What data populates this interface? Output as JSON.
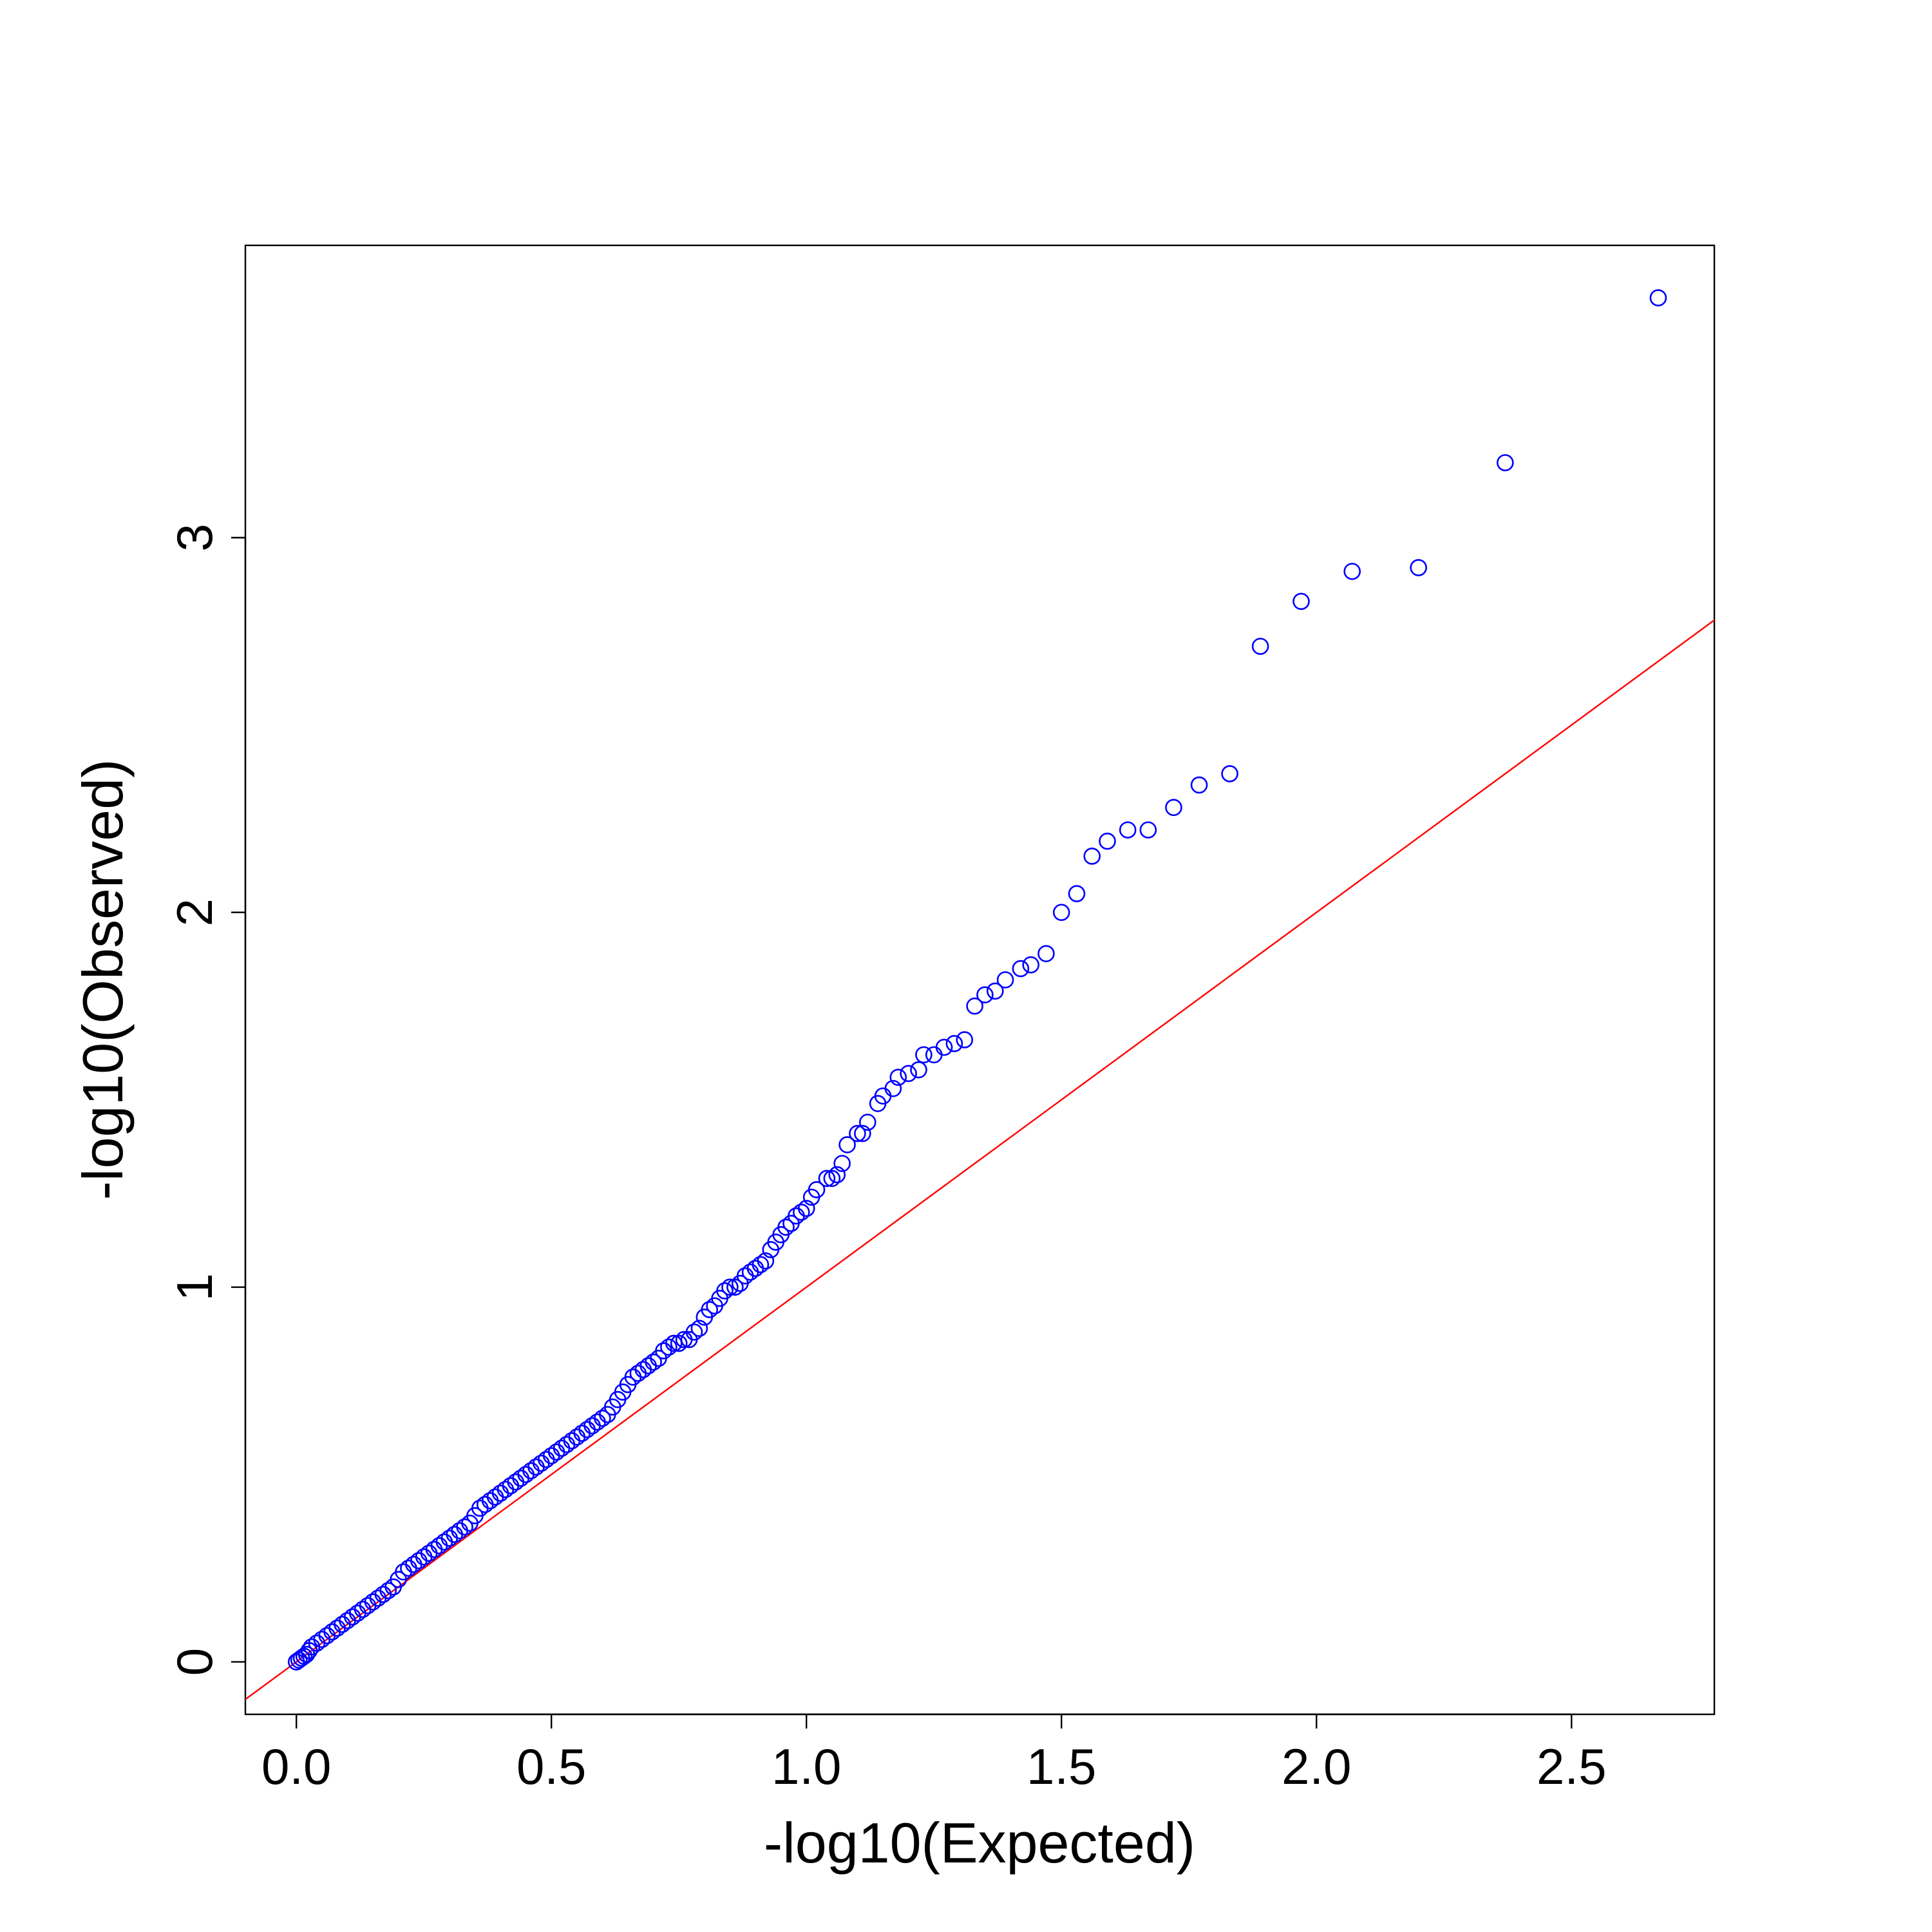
{
  "chart_data": {
    "type": "scatter",
    "title": "",
    "xlabel": "-log10(Expected)",
    "ylabel": "-log10(Observed)",
    "xlim": [
      -0.1,
      2.78
    ],
    "ylim": [
      -0.14,
      3.78
    ],
    "x_ticks": [
      0.0,
      0.5,
      1.0,
      1.5,
      2.0,
      2.5
    ],
    "x_tick_labels": [
      "0.0",
      "0.5",
      "1.0",
      "1.5",
      "2.0",
      "2.5"
    ],
    "y_ticks": [
      0,
      1,
      2,
      3
    ],
    "y_tick_labels": [
      "0",
      "1",
      "2",
      "3"
    ],
    "grid": false,
    "legend": "none",
    "colors": {
      "points": "#0000ff",
      "reference_line": "#ff0000",
      "axes": "#000000"
    },
    "reference_line": {
      "type": "y=x",
      "slope": 1,
      "intercept": 0
    },
    "series": [
      {
        "marker": "open-circle",
        "points": [
          [
            2.67,
            3.64
          ],
          [
            2.37,
            3.2
          ],
          [
            2.2,
            2.92
          ],
          [
            2.07,
            2.91
          ],
          [
            1.97,
            2.83
          ],
          [
            1.89,
            2.71
          ],
          [
            1.83,
            2.37
          ],
          [
            1.77,
            2.34
          ],
          [
            1.72,
            2.28
          ],
          [
            1.67,
            2.22
          ],
          [
            1.63,
            2.22
          ],
          [
            1.59,
            2.19
          ],
          [
            1.56,
            2.15
          ],
          [
            1.53,
            2.05
          ],
          [
            1.5,
            2.0
          ],
          [
            1.47,
            1.89
          ],
          [
            1.44,
            1.86
          ],
          [
            1.42,
            1.85
          ],
          [
            1.39,
            1.82
          ],
          [
            1.37,
            1.79
          ],
          [
            1.35,
            1.78
          ],
          [
            1.33,
            1.75
          ],
          [
            1.31,
            1.66
          ],
          [
            1.29,
            1.65
          ],
          [
            1.27,
            1.64
          ],
          [
            1.25,
            1.62
          ],
          [
            1.23,
            1.62
          ],
          [
            1.22,
            1.58
          ],
          [
            1.2,
            1.57
          ],
          [
            1.18,
            1.56
          ],
          [
            1.17,
            1.53
          ],
          [
            1.15,
            1.51
          ],
          [
            1.14,
            1.49
          ],
          [
            1.12,
            1.44
          ],
          [
            1.11,
            1.41
          ],
          [
            1.1,
            1.41
          ],
          [
            1.08,
            1.38
          ],
          [
            1.07,
            1.33
          ],
          [
            1.06,
            1.3
          ],
          [
            1.05,
            1.29
          ],
          [
            1.04,
            1.29
          ],
          [
            1.02,
            1.26
          ],
          [
            1.01,
            1.24
          ],
          [
            1.0,
            1.21
          ],
          [
            0.99,
            1.2
          ],
          [
            0.98,
            1.19
          ],
          [
            0.97,
            1.17
          ],
          [
            0.96,
            1.16
          ],
          [
            0.95,
            1.14
          ],
          [
            0.94,
            1.12
          ],
          [
            0.93,
            1.1
          ],
          [
            0.92,
            1.07
          ],
          [
            0.91,
            1.06
          ],
          [
            0.9,
            1.05
          ],
          [
            0.89,
            1.04
          ],
          [
            0.88,
            1.03
          ],
          [
            0.87,
            1.01
          ],
          [
            0.86,
            1.0
          ],
          [
            0.85,
            1.0
          ],
          [
            0.84,
            0.99
          ],
          [
            0.83,
            0.97
          ],
          [
            0.82,
            0.95
          ],
          [
            0.81,
            0.94
          ],
          [
            0.8,
            0.92
          ],
          [
            0.79,
            0.89
          ],
          [
            0.78,
            0.88
          ],
          [
            0.77,
            0.86
          ],
          [
            0.76,
            0.86
          ],
          [
            0.75,
            0.85
          ],
          [
            0.74,
            0.85
          ],
          [
            0.73,
            0.84
          ],
          [
            0.72,
            0.83
          ],
          [
            0.71,
            0.81
          ],
          [
            0.7,
            0.8
          ],
          [
            0.69,
            0.79
          ],
          [
            0.68,
            0.78
          ],
          [
            0.67,
            0.77
          ],
          [
            0.66,
            0.76
          ],
          [
            0.65,
            0.74
          ],
          [
            0.64,
            0.72
          ],
          [
            0.63,
            0.7
          ],
          [
            0.62,
            0.68
          ],
          [
            0.61,
            0.66
          ],
          [
            0.6,
            0.65
          ],
          [
            0.59,
            0.64
          ],
          [
            0.58,
            0.63
          ],
          [
            0.57,
            0.62
          ],
          [
            0.56,
            0.61
          ],
          [
            0.55,
            0.6
          ],
          [
            0.54,
            0.59
          ],
          [
            0.53,
            0.58
          ],
          [
            0.52,
            0.57
          ],
          [
            0.51,
            0.56
          ],
          [
            0.5,
            0.55
          ],
          [
            0.49,
            0.54
          ],
          [
            0.48,
            0.53
          ],
          [
            0.47,
            0.52
          ],
          [
            0.46,
            0.51
          ],
          [
            0.45,
            0.5
          ],
          [
            0.44,
            0.49
          ],
          [
            0.43,
            0.48
          ],
          [
            0.42,
            0.47
          ],
          [
            0.41,
            0.46
          ],
          [
            0.4,
            0.45
          ],
          [
            0.39,
            0.44
          ],
          [
            0.38,
            0.43
          ],
          [
            0.37,
            0.42
          ],
          [
            0.36,
            0.41
          ],
          [
            0.35,
            0.39
          ],
          [
            0.34,
            0.37
          ],
          [
            0.33,
            0.36
          ],
          [
            0.32,
            0.35
          ],
          [
            0.31,
            0.34
          ],
          [
            0.3,
            0.33
          ],
          [
            0.29,
            0.32
          ],
          [
            0.28,
            0.31
          ],
          [
            0.27,
            0.3
          ],
          [
            0.26,
            0.29
          ],
          [
            0.25,
            0.28
          ],
          [
            0.24,
            0.27
          ],
          [
            0.23,
            0.26
          ],
          [
            0.22,
            0.25
          ],
          [
            0.21,
            0.24
          ],
          [
            0.2,
            0.22
          ],
          [
            0.19,
            0.2
          ],
          [
            0.18,
            0.19
          ],
          [
            0.17,
            0.18
          ],
          [
            0.16,
            0.17
          ],
          [
            0.15,
            0.16
          ],
          [
            0.14,
            0.15
          ],
          [
            0.13,
            0.14
          ],
          [
            0.12,
            0.13
          ],
          [
            0.11,
            0.12
          ],
          [
            0.1,
            0.11
          ],
          [
            0.09,
            0.1
          ],
          [
            0.08,
            0.09
          ],
          [
            0.07,
            0.08
          ],
          [
            0.06,
            0.07
          ],
          [
            0.05,
            0.06
          ],
          [
            0.04,
            0.05
          ],
          [
            0.03,
            0.04
          ],
          [
            0.025,
            0.03
          ],
          [
            0.02,
            0.02
          ],
          [
            0.015,
            0.015
          ],
          [
            0.01,
            0.01
          ],
          [
            0.005,
            0.005
          ],
          [
            0.0,
            0.0
          ]
        ]
      }
    ]
  }
}
